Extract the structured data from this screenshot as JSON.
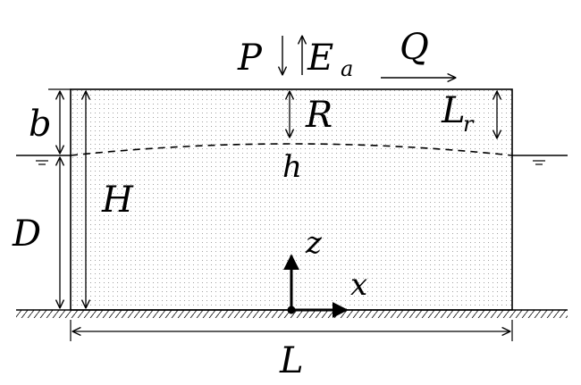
{
  "diagram": {
    "labels": {
      "precipitation": "P",
      "evaporation_main": "E",
      "evaporation_sub": "a",
      "flow": "Q",
      "recharge": "R",
      "top_layer": "b",
      "length_r_main": "L",
      "length_r_sub": "r",
      "head": "h",
      "total_height": "H",
      "depth": "D",
      "z_axis": "z",
      "x_axis": "x",
      "length": "L"
    },
    "colors": {
      "stroke": "#000000",
      "fill_dots": "#888888",
      "background": "#ffffff"
    }
  }
}
